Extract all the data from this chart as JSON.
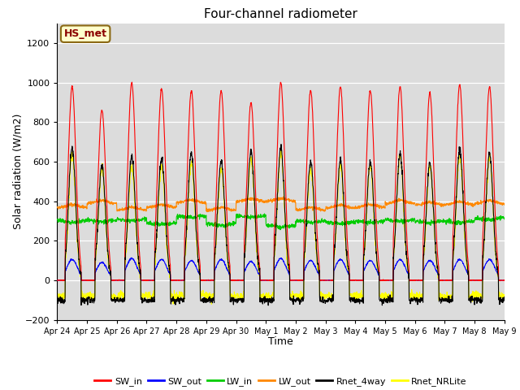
{
  "title": "Four-channel radiometer",
  "xlabel": "Time",
  "ylabel": "Solar radiation (W/m2)",
  "ylim": [
    -200,
    1300
  ],
  "yticks": [
    -200,
    0,
    200,
    400,
    600,
    800,
    1000,
    1200
  ],
  "num_days": 15,
  "label_box": "HS_met",
  "colors": {
    "SW_in": "#ff0000",
    "SW_out": "#0000ff",
    "LW_in": "#00cc00",
    "LW_out": "#ff8800",
    "Rnet_4way": "#000000",
    "Rnet_NRLite": "#ffff00"
  },
  "background_color": "#dcdcdc",
  "grid_color": "#ffffff",
  "sw_in_amps": [
    980,
    860,
    1000,
    970,
    960,
    960,
    900,
    1000,
    960,
    980,
    960,
    980,
    950,
    990,
    980
  ],
  "sw_out_amps": [
    105,
    90,
    110,
    105,
    100,
    105,
    95,
    110,
    100,
    105,
    100,
    105,
    100,
    105,
    105
  ],
  "rnet_amps": [
    670,
    580,
    630,
    620,
    640,
    600,
    650,
    670,
    600,
    610,
    600,
    640,
    590,
    660,
    640
  ],
  "lw_in_base": 310,
  "lw_out_base": 355,
  "night_rnet": -100,
  "night_nrlite": -80
}
